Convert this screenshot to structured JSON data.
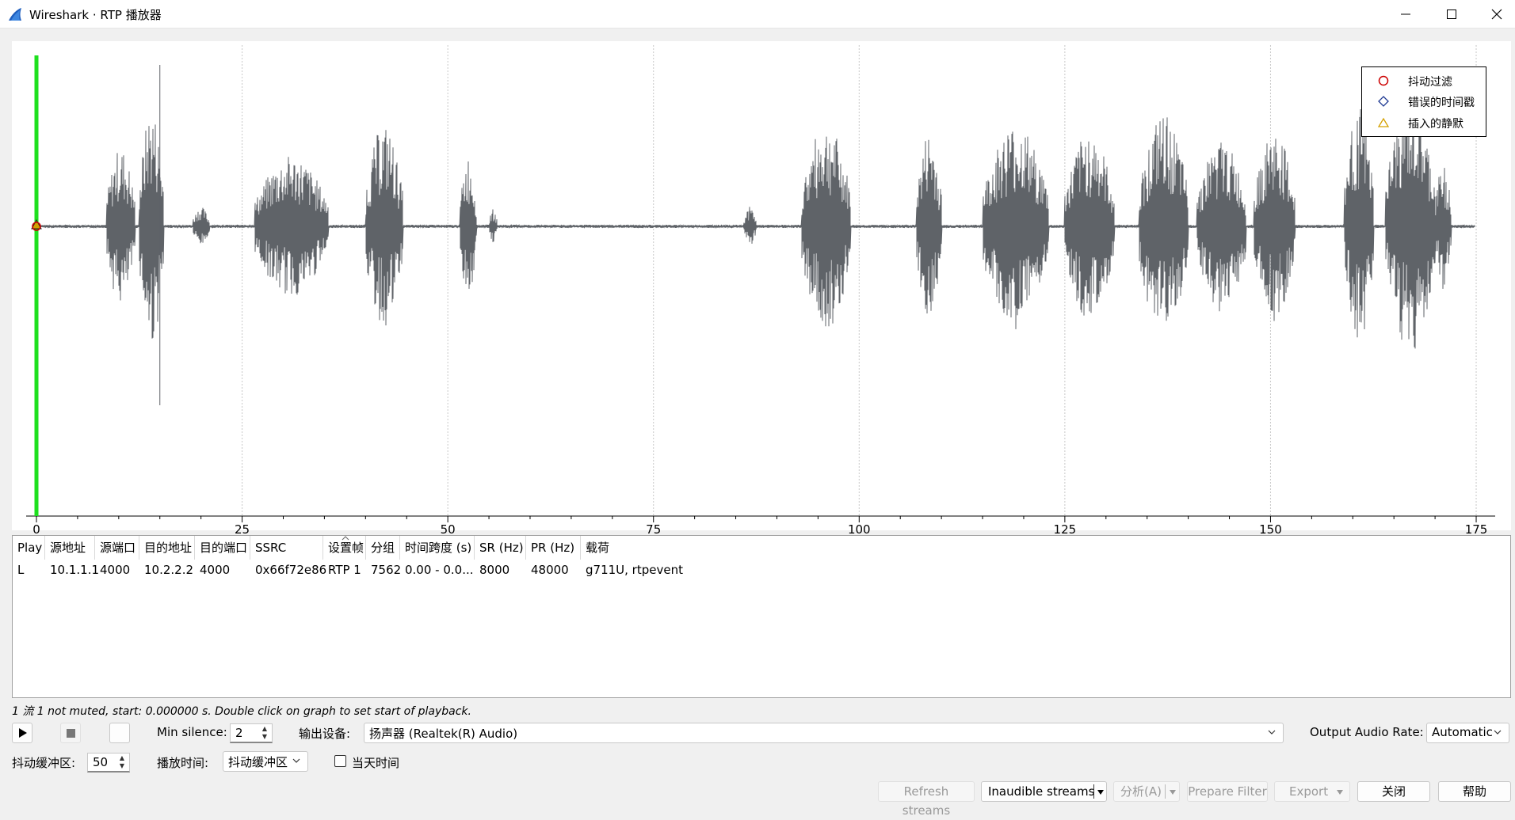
{
  "window": {
    "title": "Wireshark · RTP 播放器"
  },
  "legend": {
    "items": [
      {
        "label": "抖动过滤",
        "icon": "circle-icon",
        "color": "#cc0000"
      },
      {
        "label": "错误的时间戳",
        "icon": "diamond-icon",
        "color": "#1f3a93"
      },
      {
        "label": "插入的静默",
        "icon": "triangle-icon",
        "color": "#d4a000"
      }
    ]
  },
  "axis": {
    "ticks": [
      "0",
      "25",
      "50",
      "75",
      "100",
      "125",
      "150",
      "175"
    ]
  },
  "table": {
    "headers": [
      "Play",
      "源地址",
      "源端口",
      "目的地址",
      "目的端口",
      "SSRC",
      "设置帧",
      "分组",
      "时间跨度 (s)",
      "SR (Hz)",
      "PR (Hz)",
      "载荷"
    ],
    "rows": [
      [
        "L",
        "10.1.1.1",
        "4000",
        "10.2.2.2",
        "4000",
        "0x66f72e86",
        "RTP 1",
        "7562",
        "0.00 - 0.0...",
        "8000",
        "48000",
        "g711U, rtpevent"
      ]
    ]
  },
  "status": "1 流 1 not muted, start: 0.000000 s. Double click on graph to set start of playback.",
  "controls": {
    "min_silence_label": "Min silence:",
    "min_silence_value": "2",
    "output_device_label": "输出设备:",
    "output_device_value": "扬声器 (Realtek(R) Audio)",
    "output_rate_label": "Output Audio Rate:",
    "output_rate_value": "Automatic",
    "jitter_buffer_label": "抖动缓冲区:",
    "jitter_buffer_value": "50",
    "playback_time_label": "播放时间:",
    "playback_time_value": "抖动缓冲区",
    "time_of_day_label": "当天时间"
  },
  "buttons": {
    "refresh": "Refresh streams",
    "inaudible": "Inaudible streams",
    "analyze": "分析(A)",
    "prepare_filter": "Prepare Filter",
    "export": "Export",
    "close": "关闭",
    "help": "帮助"
  }
}
